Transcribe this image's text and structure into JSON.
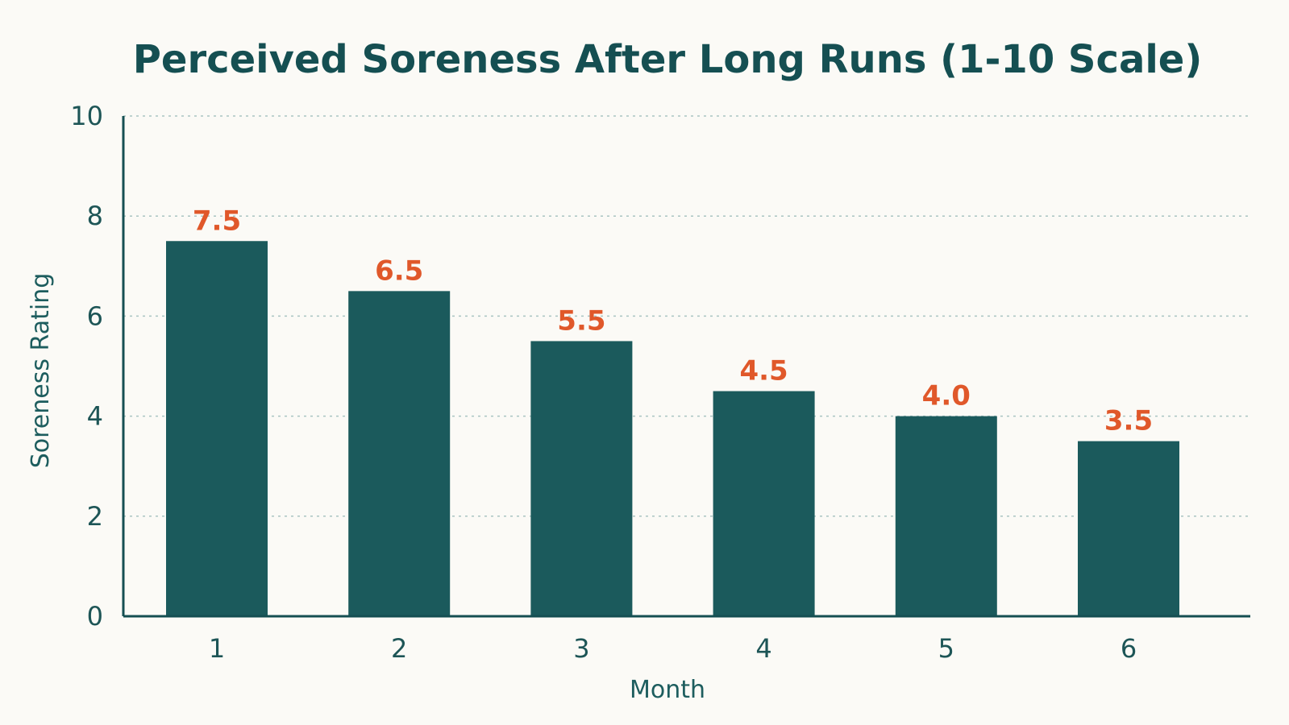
{
  "chart_data": {
    "type": "bar",
    "title": "Perceived Soreness After Long Runs (1-10 Scale)",
    "xlabel": "Month",
    "ylabel": "Soreness Rating",
    "categories": [
      "1",
      "2",
      "3",
      "4",
      "5",
      "6"
    ],
    "values": [
      7.5,
      6.5,
      5.5,
      4.5,
      4.0,
      3.5
    ],
    "data_labels": [
      "7.5",
      "6.5",
      "5.5",
      "4.5",
      "4.0",
      "3.5"
    ],
    "ylim": [
      0,
      10
    ],
    "yticks": [
      0,
      2,
      4,
      6,
      8,
      10
    ],
    "ytick_labels": [
      "0",
      "2",
      "4",
      "6",
      "8",
      "10"
    ],
    "grid": true,
    "legend": "none",
    "colors": {
      "bar": "#1b5a5c",
      "data_label": "#e0582a",
      "title": "#154f52",
      "axis": "#154f52",
      "grid": "#a9c4c2",
      "background": "#fbfaf6"
    }
  }
}
